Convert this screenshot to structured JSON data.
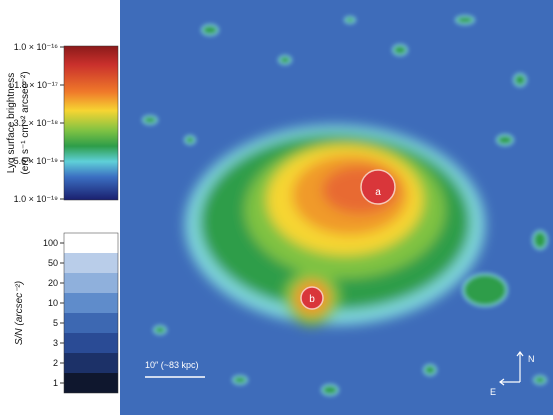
{
  "colorbar_sb": {
    "title": "Lyα  surface brightness",
    "units": "(erg s⁻¹ cm⁻² arcsec⁻²)",
    "ticks": [
      "1.0 × 10⁻¹⁶",
      "1.8 × 10⁻¹⁷",
      "3.2 × 10⁻¹⁸",
      "5.6 × 10⁻¹⁹",
      "1.0 × 10⁻¹⁹"
    ]
  },
  "colorbar_sn": {
    "title": "S/N (arcsec⁻²)",
    "ticks": [
      "100",
      "50",
      "20",
      "10",
      "5",
      "3",
      "2",
      "1"
    ]
  },
  "image": {
    "source_a": "a",
    "source_b": "b",
    "scale_bar": "10″ (~83 kpc)",
    "north": "N",
    "east": "E"
  }
}
